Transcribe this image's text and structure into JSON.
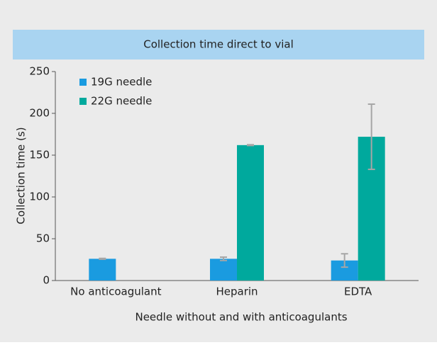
{
  "chart_data": {
    "type": "bar",
    "title": "Collection time direct to vial",
    "categories": [
      "No anticoagulant",
      "Heparin",
      "EDTA"
    ],
    "series": [
      {
        "name": "19G needle",
        "color": "#1a9be0",
        "values": [
          26,
          26,
          24
        ],
        "errors": [
          0.5,
          2,
          8
        ]
      },
      {
        "name": "22G needle",
        "color": "#00a99d",
        "values": [
          null,
          162,
          172
        ],
        "errors": [
          null,
          0.5,
          39
        ]
      }
    ],
    "ylabel": "Collection time (s)",
    "xlabel": "Needle without and with anticoagulants",
    "ylim": [
      0,
      250
    ],
    "yticks": [
      0,
      50,
      100,
      150,
      200,
      250
    ],
    "grid": false,
    "legend": "upper left"
  }
}
